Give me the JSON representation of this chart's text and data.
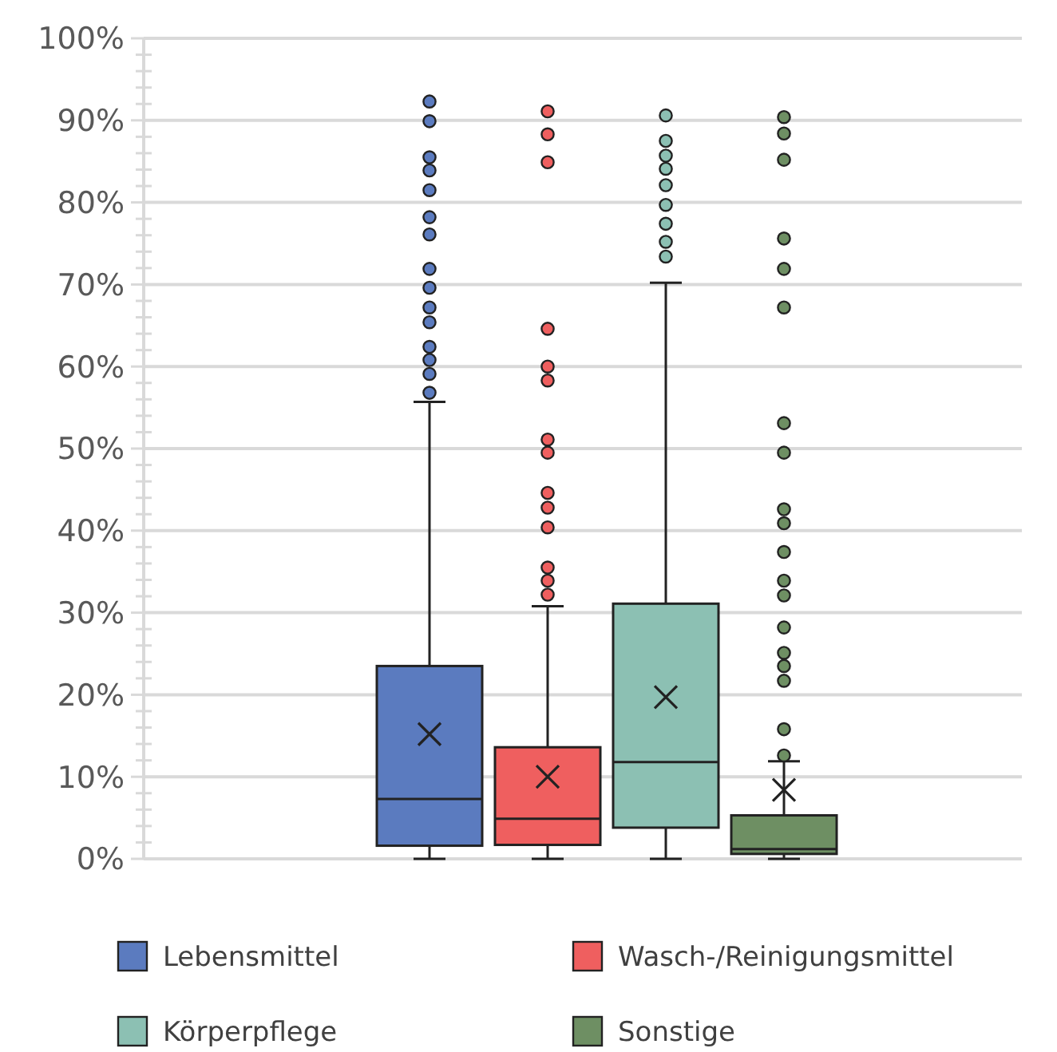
{
  "chart_data": {
    "type": "box",
    "categories": [
      null
    ],
    "series": [
      {
        "name": "Lebensmittel",
        "color": "#5b7bbf",
        "boxes": [
          {
            "low": 0,
            "q1": 1.6,
            "median": 7.3,
            "q3": 23.5,
            "high": 55.7,
            "mean": 15.2,
            "outliers": [
              92.3,
              89.9,
              85.5,
              83.9,
              81.5,
              78.2,
              76.1,
              71.9,
              69.6,
              67.2,
              65.4,
              62.4,
              60.8,
              59.1,
              56.8
            ]
          }
        ]
      },
      {
        "name": "Wasch-/Reinigungsmittel",
        "color": "#ef5f5f",
        "boxes": [
          {
            "low": 0,
            "q1": 1.7,
            "median": 4.9,
            "q3": 13.6,
            "high": 30.8,
            "mean": 10.0,
            "outliers": [
              91.1,
              88.3,
              84.9,
              64.6,
              60.0,
              58.3,
              51.1,
              49.5,
              44.6,
              42.8,
              40.4,
              35.5,
              33.9,
              32.2
            ]
          }
        ]
      },
      {
        "name": "Körperpflege",
        "color": "#8cc0b3",
        "boxes": [
          {
            "low": 0,
            "q1": 3.8,
            "median": 11.8,
            "q3": 31.1,
            "high": 70.2,
            "mean": 19.7,
            "outliers": [
              90.6,
              87.5,
              85.7,
              84.1,
              82.1,
              79.7,
              77.4,
              75.2,
              73.4
            ]
          }
        ]
      },
      {
        "name": "Sonstige",
        "color": "#6e8f63",
        "boxes": [
          {
            "low": 0,
            "q1": 0.6,
            "median": 1.2,
            "q3": 5.3,
            "high": 11.9,
            "mean": 8.4,
            "outliers": [
              90.4,
              88.4,
              85.2,
              75.6,
              71.9,
              67.2,
              53.1,
              49.5,
              42.6,
              40.9,
              37.4,
              33.9,
              32.1,
              28.2,
              25.1,
              23.5,
              21.7,
              15.8,
              12.6
            ]
          }
        ]
      }
    ],
    "ylim": [
      0,
      100
    ],
    "yticks": [
      {
        "value": 0,
        "label": "0%"
      },
      {
        "value": 2,
        "label": null
      },
      {
        "value": 4,
        "label": null
      },
      {
        "value": 6,
        "label": null
      },
      {
        "value": 8,
        "label": null
      },
      {
        "value": 10,
        "label": "10%"
      },
      {
        "value": 12,
        "label": null
      },
      {
        "value": 14,
        "label": null
      },
      {
        "value": 16,
        "label": null
      },
      {
        "value": 18,
        "label": null
      },
      {
        "value": 20,
        "label": "20%"
      },
      {
        "value": 22,
        "label": null
      },
      {
        "value": 24,
        "label": null
      },
      {
        "value": 26,
        "label": null
      },
      {
        "value": 28,
        "label": null
      },
      {
        "value": 30,
        "label": "30%"
      },
      {
        "value": 32,
        "label": null
      },
      {
        "value": 34,
        "label": null
      },
      {
        "value": 36,
        "label": null
      },
      {
        "value": 38,
        "label": null
      },
      {
        "value": 40,
        "label": "40%"
      },
      {
        "value": 42,
        "label": null
      },
      {
        "value": 44,
        "label": null
      },
      {
        "value": 46,
        "label": null
      },
      {
        "value": 48,
        "label": null
      },
      {
        "value": 50,
        "label": "50%"
      },
      {
        "value": 52,
        "label": null
      },
      {
        "value": 54,
        "label": null
      },
      {
        "value": 56,
        "label": null
      },
      {
        "value": 58,
        "label": null
      },
      {
        "value": 60,
        "label": "60%"
      },
      {
        "value": 62,
        "label": null
      },
      {
        "value": 64,
        "label": null
      },
      {
        "value": 66,
        "label": null
      },
      {
        "value": 68,
        "label": null
      },
      {
        "value": 70,
        "label": "70%"
      },
      {
        "value": 72,
        "label": null
      },
      {
        "value": 74,
        "label": null
      },
      {
        "value": 76,
        "label": null
      },
      {
        "value": 78,
        "label": null
      },
      {
        "value": 80,
        "label": "80%"
      },
      {
        "value": 82,
        "label": null
      },
      {
        "value": 84,
        "label": null
      },
      {
        "value": 86,
        "label": null
      },
      {
        "value": 88,
        "label": null
      },
      {
        "value": 90,
        "label": "90%"
      },
      {
        "value": 92,
        "label": null
      },
      {
        "value": 94,
        "label": null
      },
      {
        "value": 96,
        "label": null
      },
      {
        "value": 98,
        "label": null
      },
      {
        "value": 100,
        "label": "100%"
      }
    ],
    "grid": true,
    "legend": "bottom",
    "tick_labels": "y"
  }
}
